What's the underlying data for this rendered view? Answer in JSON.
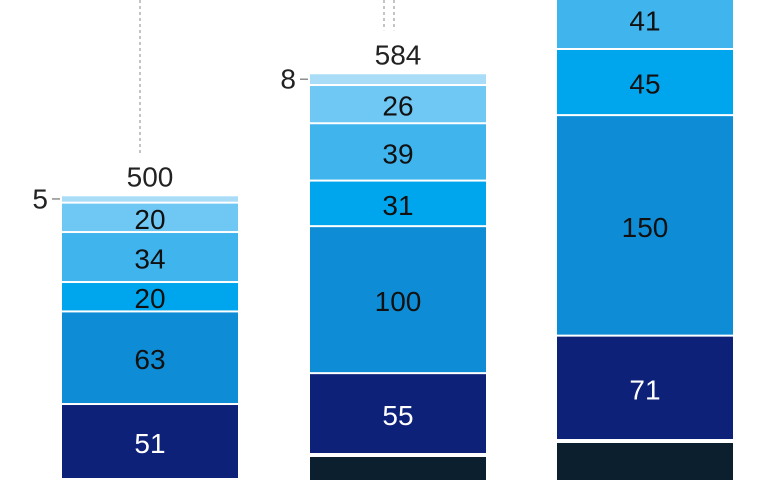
{
  "chart_data": {
    "type": "bar",
    "stacked": true,
    "categories": [
      "",
      "",
      ""
    ],
    "totals": [
      "500",
      "584",
      ""
    ],
    "series": [
      {
        "color": "#0b1f2e",
        "values": [
          null,
          null,
          null
        ]
      },
      {
        "color": "#0c2177",
        "values": [
          51,
          55,
          71
        ]
      },
      {
        "color": "#0e8dd6",
        "values": [
          63,
          100,
          150
        ]
      },
      {
        "color": "#00a6ed",
        "values": [
          20,
          31,
          45
        ]
      },
      {
        "color": "#40b4ed",
        "values": [
          34,
          39,
          41
        ]
      },
      {
        "color": "#6fc8f4",
        "values": [
          20,
          26,
          null
        ]
      },
      {
        "color": "#a9dcf7",
        "values": [
          5,
          8,
          null
        ]
      }
    ],
    "small_value_labels": [
      "5",
      "8",
      ""
    ],
    "grid": false,
    "legend": "none"
  }
}
